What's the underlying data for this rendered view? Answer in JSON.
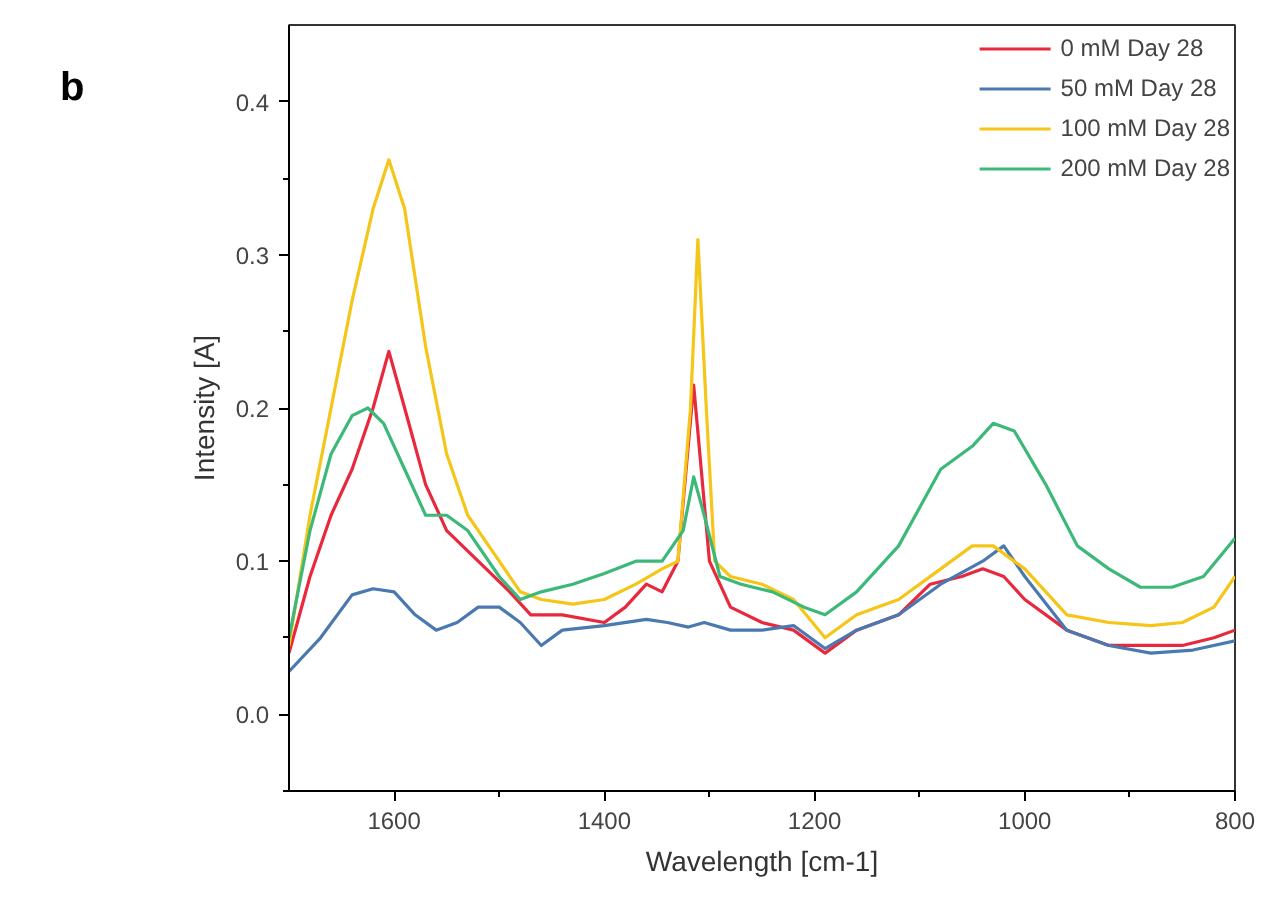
{
  "chart_data": {
    "type": "line",
    "xlabel": "Wavelength [cm-1]",
    "ylabel": "Intensity [A]",
    "annotations": [
      "b"
    ],
    "xlim": [
      1700,
      800
    ],
    "ylim": [
      -0.05,
      0.45
    ],
    "xticks": [
      1600,
      {
        "value": 1500,
        "label": null
      },
      1400,
      {
        "value": 1300,
        "label": null
      },
      1200,
      {
        "value": 1100,
        "label": null
      },
      1000,
      {
        "value": 900,
        "label": null
      },
      800
    ],
    "yticks": [
      {
        "value": -0.05,
        "label": null
      },
      "0.0",
      {
        "value": 0.05,
        "label": null
      },
      0.1,
      {
        "value": 0.15,
        "label": null
      },
      0.2,
      {
        "value": 0.25,
        "label": null
      },
      0.3,
      {
        "value": 0.35,
        "label": null
      },
      0.4
    ],
    "grid": false,
    "legend": "top right",
    "line_style": "solid",
    "series": [
      {
        "name": "0 mM Day 28",
        "color": "#e8283c",
        "x": [
          1700,
          1680,
          1660,
          1640,
          1620,
          1605,
          1590,
          1570,
          1550,
          1520,
          1490,
          1470,
          1440,
          1400,
          1380,
          1360,
          1345,
          1330,
          1315,
          1300,
          1280,
          1250,
          1220,
          1190,
          1160,
          1120,
          1090,
          1060,
          1040,
          1020,
          1000,
          960,
          920,
          880,
          850,
          820,
          800
        ],
        "values": [
          0.04,
          0.09,
          0.13,
          0.16,
          0.2,
          0.237,
          0.2,
          0.15,
          0.12,
          0.1,
          0.08,
          0.065,
          0.065,
          0.06,
          0.07,
          0.085,
          0.08,
          0.1,
          0.215,
          0.1,
          0.07,
          0.06,
          0.055,
          0.04,
          0.055,
          0.065,
          0.085,
          0.09,
          0.095,
          0.09,
          0.075,
          0.055,
          0.045,
          0.045,
          0.045,
          0.05,
          0.055
        ]
      },
      {
        "name": "50 mM Day 28",
        "color": "#4a78b0",
        "x": [
          1700,
          1670,
          1640,
          1620,
          1600,
          1580,
          1560,
          1540,
          1520,
          1500,
          1480,
          1460,
          1440,
          1400,
          1360,
          1340,
          1320,
          1305,
          1280,
          1250,
          1220,
          1190,
          1160,
          1120,
          1080,
          1040,
          1020,
          1000,
          960,
          920,
          880,
          840,
          800
        ],
        "values": [
          0.028,
          0.05,
          0.078,
          0.082,
          0.08,
          0.065,
          0.055,
          0.06,
          0.07,
          0.07,
          0.06,
          0.045,
          0.055,
          0.058,
          0.062,
          0.06,
          0.057,
          0.06,
          0.055,
          0.055,
          0.058,
          0.043,
          0.055,
          0.065,
          0.085,
          0.1,
          0.11,
          0.09,
          0.055,
          0.045,
          0.04,
          0.042,
          0.048
        ]
      },
      {
        "name": "100 mM Day 28",
        "color": "#f5c518",
        "x": [
          1700,
          1680,
          1660,
          1640,
          1620,
          1605,
          1590,
          1570,
          1550,
          1530,
          1500,
          1480,
          1460,
          1430,
          1400,
          1370,
          1345,
          1330,
          1318,
          1311,
          1303,
          1295,
          1280,
          1250,
          1220,
          1190,
          1160,
          1120,
          1080,
          1050,
          1030,
          1000,
          960,
          920,
          880,
          850,
          820,
          800
        ],
        "values": [
          0.045,
          0.13,
          0.2,
          0.27,
          0.33,
          0.362,
          0.33,
          0.24,
          0.17,
          0.13,
          0.1,
          0.08,
          0.075,
          0.072,
          0.075,
          0.085,
          0.095,
          0.1,
          0.2,
          0.31,
          0.2,
          0.1,
          0.09,
          0.085,
          0.075,
          0.05,
          0.065,
          0.075,
          0.095,
          0.11,
          0.11,
          0.095,
          0.065,
          0.06,
          0.058,
          0.06,
          0.07,
          0.09
        ]
      },
      {
        "name": "200 mM Day 28",
        "color": "#3cb878",
        "x": [
          1700,
          1680,
          1660,
          1640,
          1625,
          1610,
          1590,
          1570,
          1550,
          1530,
          1500,
          1480,
          1460,
          1430,
          1400,
          1370,
          1345,
          1325,
          1315,
          1305,
          1290,
          1270,
          1240,
          1210,
          1190,
          1160,
          1120,
          1080,
          1050,
          1030,
          1010,
          980,
          950,
          920,
          890,
          860,
          830,
          800
        ],
        "values": [
          0.05,
          0.12,
          0.17,
          0.195,
          0.2,
          0.19,
          0.16,
          0.13,
          0.13,
          0.12,
          0.09,
          0.075,
          0.08,
          0.085,
          0.092,
          0.1,
          0.1,
          0.12,
          0.155,
          0.13,
          0.09,
          0.085,
          0.08,
          0.07,
          0.065,
          0.08,
          0.11,
          0.16,
          0.175,
          0.19,
          0.185,
          0.15,
          0.11,
          0.095,
          0.083,
          0.083,
          0.09,
          0.115
        ]
      }
    ]
  }
}
